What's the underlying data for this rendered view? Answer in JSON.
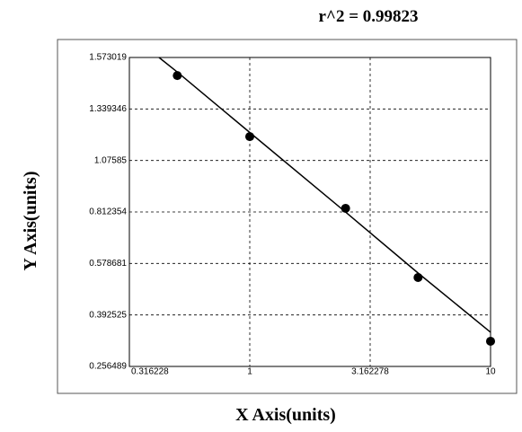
{
  "chart_data": {
    "type": "scatter",
    "title": "r^2 = 0.99823",
    "x_label": "X Axis(units)",
    "y_label": "Y Axis(units)",
    "xscale": "log",
    "grid": true,
    "xlim": [
      0.316228,
      10
    ],
    "xticks": [
      0.316228,
      1,
      3.162278,
      10
    ],
    "ylim": [
      0.256489,
      1.573019
    ],
    "yticks": [
      0.256489,
      0.392525,
      0.578681,
      0.812354,
      1.07585,
      1.339346,
      1.573019
    ],
    "series": [
      {
        "mode": "markers",
        "color": "#000000",
        "x": [
          0.5,
          1,
          2.5,
          5,
          10
        ],
        "values": [
          1.491,
          1.198,
          0.831,
          0.528,
          0.323
        ]
      },
      {
        "mode": "line",
        "color": "#000000",
        "x": [
          0.42,
          0.5,
          1,
          2.5,
          5,
          10
        ],
        "values": [
          1.573019,
          1.507,
          1.219,
          0.812,
          0.544,
          0.347
        ]
      }
    ]
  }
}
